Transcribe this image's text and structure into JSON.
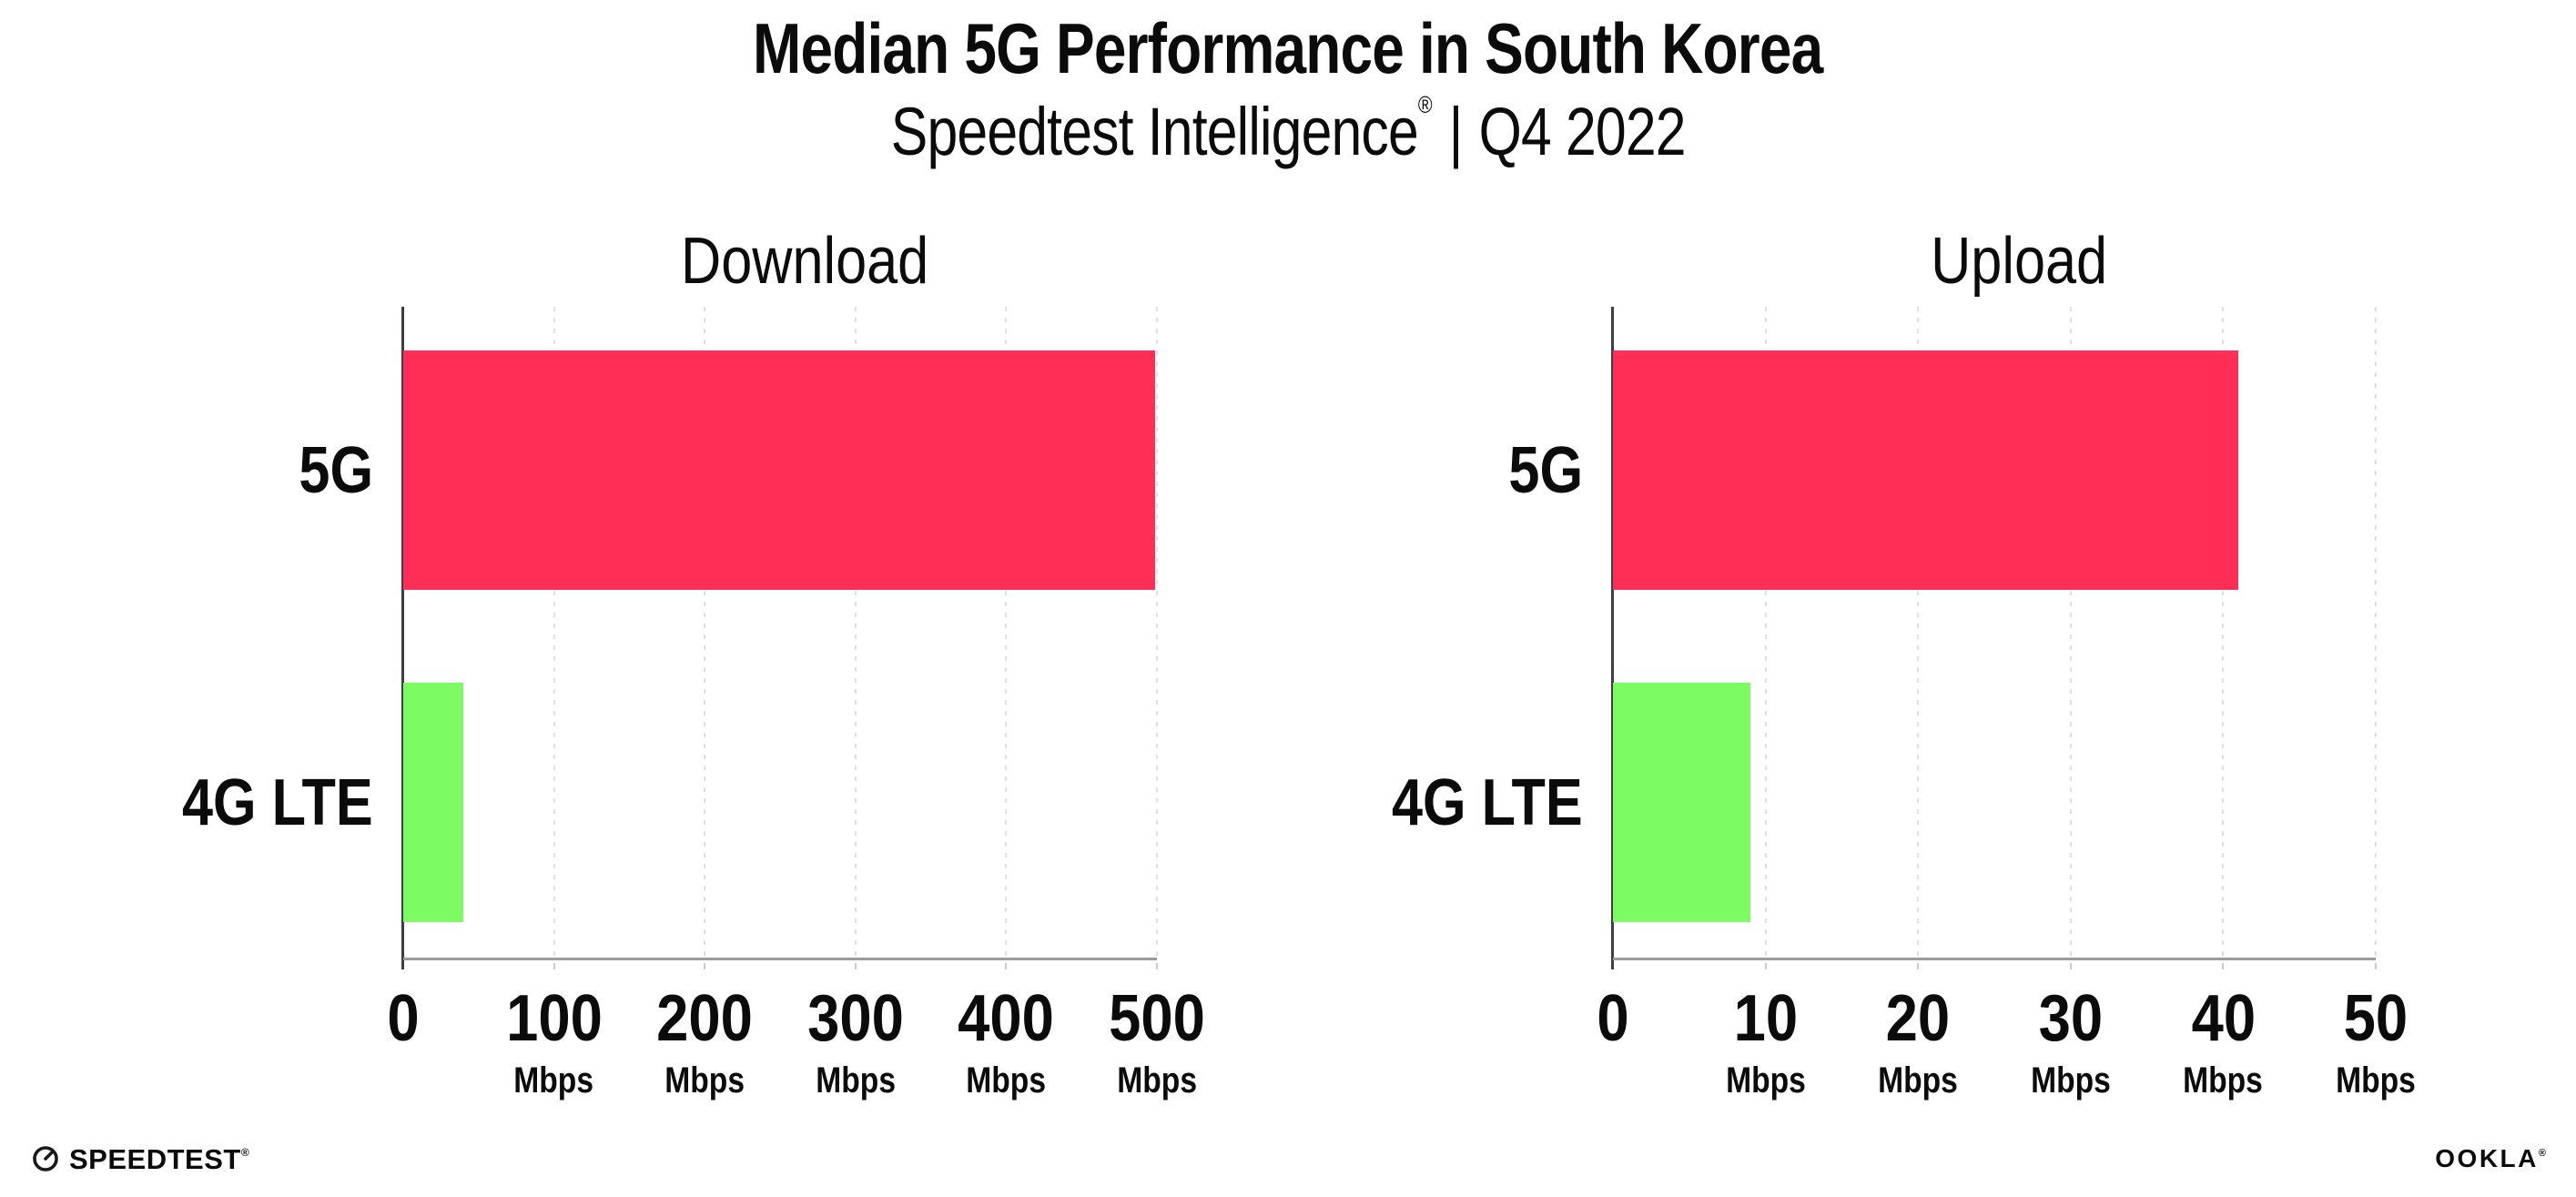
{
  "header": {
    "title": "Median 5G Performance in South Korea",
    "subtitle": {
      "brand": "Speedtest Intelligence",
      "registered_mark": "®",
      "separator": "|",
      "period": "Q4 2022"
    }
  },
  "chart_data": [
    {
      "type": "bar",
      "orientation": "horizontal",
      "title": "Download",
      "categories": [
        "5G",
        "4G LTE"
      ],
      "values": [
        499,
        40
      ],
      "unit": "Mbps",
      "xlabel": "",
      "ylabel": "",
      "xlim": [
        0,
        500
      ],
      "xticks": [
        0,
        100,
        200,
        300,
        400,
        500
      ],
      "grid": "vertical-dotted",
      "legend": "none",
      "bar_colors": [
        "#FF2E56",
        "#7DFB63"
      ]
    },
    {
      "type": "bar",
      "orientation": "horizontal",
      "title": "Upload",
      "categories": [
        "5G",
        "4G LTE"
      ],
      "values": [
        41,
        9
      ],
      "unit": "Mbps",
      "xlabel": "",
      "ylabel": "",
      "xlim": [
        0,
        50
      ],
      "xticks": [
        0,
        10,
        20,
        30,
        40,
        50
      ],
      "grid": "vertical-dotted",
      "legend": "none",
      "bar_colors": [
        "#FF2E56",
        "#7DFB63"
      ]
    }
  ],
  "colors": {
    "bar_5g": "#FF2E56",
    "bar_4g_lte": "#7DFB63",
    "gridline": "#DFDFE8",
    "x_axis_line": "#9B9BA3",
    "y_axis_line": "#3E3E46",
    "text": "#0B0B0C",
    "background": "#FFFFFF"
  },
  "footer": {
    "speedtest_wordmark": "SPEEDTEST",
    "speedtest_mark": "®",
    "speedtest_icon": "gauge-icon",
    "ookla_wordmark": "OOKLA",
    "ookla_mark": "®"
  }
}
